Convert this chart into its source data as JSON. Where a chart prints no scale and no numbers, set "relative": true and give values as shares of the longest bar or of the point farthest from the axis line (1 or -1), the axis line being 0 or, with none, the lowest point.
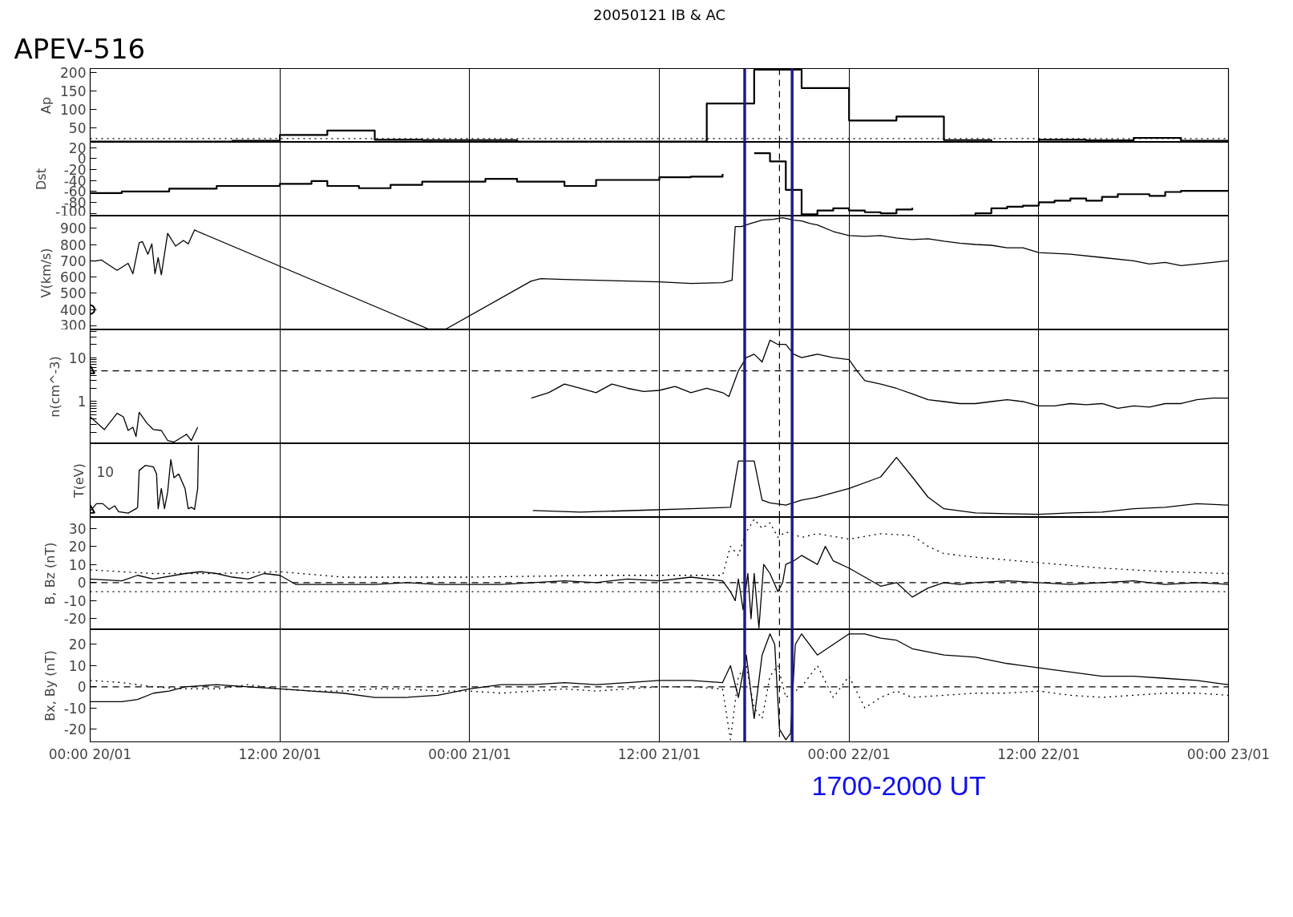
{
  "chart_data": [
    {
      "type": "step",
      "title": "APEV-516",
      "subtitle": "20050121 IB & AC",
      "ylabel": "Ap",
      "xlim": [
        "2005-01-20T00:00",
        "2005-01-23T00:00"
      ],
      "ylim": [
        10,
        210
      ],
      "yticks": [
        50,
        100,
        150,
        200
      ],
      "tick_labels": "y",
      "grid": "x",
      "series": [
        {
          "color": "#000000",
          "x": [
            "2005-01-20T00:00",
            "2005-01-20T03:00",
            "2005-01-20T06:00",
            "2005-01-20T09:00",
            "2005-01-20T12:00",
            "2005-01-20T15:00",
            "2005-01-20T18:00",
            "2005-01-20T21:00",
            "2005-01-21T00:00",
            "2005-01-21T03:00",
            "2005-01-21T06:00",
            "2005-01-21T09:00",
            "2005-01-21T12:00",
            "2005-01-21T15:00",
            "2005-01-21T18:00",
            "2005-01-21T21:00",
            "2005-01-22T00:00",
            "2005-01-22T03:00",
            "2005-01-22T06:00",
            "2005-01-22T09:00",
            "2005-01-22T12:00",
            "2005-01-22T15:00",
            "2005-01-22T18:00",
            "2005-01-22T21:00",
            "2005-01-23T00:00"
          ],
          "values": [
            12,
            12,
            12,
            14,
            30,
            42,
            17,
            16,
            16,
            12,
            12,
            12,
            12,
            115,
            207,
            157,
            69,
            80,
            16,
            11,
            17,
            15,
            22,
            14,
            14
          ]
        }
      ],
      "ref_lines": [
        {
          "axis": "y",
          "value": 20,
          "line_style": "dotted",
          "color": "#000000"
        },
        {
          "axis": "x",
          "value": "2005-01-21T19:36",
          "line_style": "dashed",
          "color": "#000000"
        },
        {
          "axis": "x",
          "value": "2005-01-21T17:24",
          "color": "#1c1c8c"
        },
        {
          "axis": "x",
          "value": "2005-01-21T20:24",
          "color": "#1c1c8c"
        }
      ]
    },
    {
      "type": "step",
      "ylabel": "Dst",
      "xlim": [
        "2005-01-20T00:00",
        "2005-01-23T00:00"
      ],
      "ylim": [
        -105,
        30
      ],
      "yticks": [
        20,
        0,
        -20,
        -40,
        -60,
        -80,
        -100
      ],
      "tick_labels": "y",
      "grid": "x",
      "series": [
        {
          "color": "#000000",
          "x": [
            "2005-01-20T00:00",
            "2005-01-20T02:00",
            "2005-01-20T05:00",
            "2005-01-20T08:00",
            "2005-01-20T12:00",
            "2005-01-20T14:00",
            "2005-01-20T15:00",
            "2005-01-20T17:00",
            "2005-01-20T19:00",
            "2005-01-20T21:00",
            "2005-01-21T01:00",
            "2005-01-21T03:00",
            "2005-01-21T06:00",
            "2005-01-21T08:00",
            "2005-01-21T12:00",
            "2005-01-21T14:00",
            "2005-01-21T16:00",
            "2005-01-21T17:00",
            "2005-01-21T18:00",
            "2005-01-21T19:00",
            "2005-01-21T20:00",
            "2005-01-21T21:00",
            "2005-01-21T22:00",
            "2005-01-21T23:00",
            "2005-01-22T00:00",
            "2005-01-22T01:00",
            "2005-01-22T02:00",
            "2005-01-22T03:00",
            "2005-01-22T04:00",
            "2005-01-22T05:00",
            "2005-01-22T07:00",
            "2005-01-22T08:00",
            "2005-01-22T09:00",
            "2005-01-22T10:00",
            "2005-01-22T11:00",
            "2005-01-22T12:00",
            "2005-01-22T13:00",
            "2005-01-22T14:00",
            "2005-01-22T15:00",
            "2005-01-22T16:00",
            "2005-01-22T17:00",
            "2005-01-22T19:00",
            "2005-01-22T20:00",
            "2005-01-22T21:00",
            "2005-01-23T00:00"
          ],
          "values": [
            -63,
            -60,
            -55,
            -50,
            -46,
            -41,
            -50,
            -54,
            -48,
            -42,
            -37,
            -42,
            -50,
            -39,
            -34,
            -33,
            -28,
            null,
            10,
            -5,
            -57,
            -102,
            -95,
            -91,
            -95,
            -98,
            -100,
            -93,
            -90,
            null,
            -104,
            -100,
            -91,
            -88,
            -86,
            -80,
            -77,
            -73,
            -77,
            -70,
            -65,
            -68,
            -61,
            -59,
            -59
          ]
        }
      ],
      "ref_lines": [
        {
          "axis": "x",
          "value": "2005-01-21T19:36",
          "line_style": "dashed",
          "color": "#000000"
        },
        {
          "axis": "x",
          "value": "2005-01-21T17:24",
          "color": "#1c1c8c"
        },
        {
          "axis": "x",
          "value": "2005-01-21T20:24",
          "color": "#1c1c8c"
        }
      ]
    },
    {
      "type": "line",
      "ylabel": "V(km/s)",
      "xlim": [
        "2005-01-20T00:00",
        "2005-01-23T00:00"
      ],
      "ylim": [
        275,
        975
      ],
      "yticks": [
        300,
        400,
        500,
        600,
        700,
        800,
        900
      ],
      "tick_labels": "y",
      "grid": "x",
      "series": [
        {
          "color": "#000000",
          "x": [
            "2005-01-20T00:00",
            "2005-01-20T00:18",
            "2005-01-20T00:42",
            "2005-01-20T01:42",
            "2005-01-20T02:24",
            "2005-01-20T02:42",
            "2005-01-20T03:06",
            "2005-01-20T03:18",
            "2005-01-20T03:39",
            "2005-01-20T03:54",
            "2005-01-20T04:06",
            "2005-01-20T04:18",
            "2005-01-20T04:30",
            "2005-01-20T04:54",
            "2005-01-20T05:24",
            "2005-01-20T05:54",
            "2005-01-20T06:12",
            "2005-01-20T06:36",
            "2005-01-20T06:48",
            "2005-01-20T21:24",
            "2005-01-20T22:30",
            "2005-01-21T03:54",
            "2005-01-21T04:30",
            "2005-01-21T06:00",
            "2005-01-21T08:00",
            "2005-01-21T10:00",
            "2005-01-21T12:00",
            "2005-01-21T14:00",
            "2005-01-21T16:00",
            "2005-01-21T16:36",
            "2005-01-21T16:48",
            "2005-01-21T17:12",
            "2005-01-21T17:48",
            "2005-01-21T18:30",
            "2005-01-21T19:12",
            "2005-01-21T19:48",
            "2005-01-21T20:30",
            "2005-01-21T21:00",
            "2005-01-21T21:30",
            "2005-01-21T22:00",
            "2005-01-21T23:00",
            "2005-01-22T00:00",
            "2005-01-22T01:00",
            "2005-01-22T02:00",
            "2005-01-22T03:00",
            "2005-01-22T04:00",
            "2005-01-22T05:00",
            "2005-01-22T06:00",
            "2005-01-22T07:00",
            "2005-01-22T08:00",
            "2005-01-22T09:00",
            "2005-01-22T10:00",
            "2005-01-22T11:00",
            "2005-01-22T12:00",
            "2005-01-22T14:00",
            "2005-01-22T16:00",
            "2005-01-22T18:00",
            "2005-01-22T19:00",
            "2005-01-22T20:00",
            "2005-01-22T21:00",
            "2005-01-22T22:00",
            "2005-01-22T23:00",
            "2005-01-23T00:00"
          ],
          "values": [
            700,
            698,
            705,
            641,
            684,
            620,
            811,
            818,
            740,
            804,
            620,
            719,
            613,
            868,
            790,
            825,
            804,
            889,
            880,
            280,
            280,
            575,
            590,
            585,
            580,
            575,
            570,
            560,
            565,
            580,
            910,
            910,
            930,
            950,
            955,
            965,
            950,
            945,
            930,
            920,
            880,
            855,
            850,
            855,
            840,
            830,
            835,
            820,
            808,
            800,
            795,
            780,
            780,
            750,
            740,
            720,
            700,
            680,
            690,
            670,
            680,
            690,
            700
          ]
        },
        {
          "type": "scatter",
          "marker": "circle",
          "color": "#000000",
          "x": [
            "2005-01-20T00:00"
          ],
          "values": [
            400
          ]
        }
      ],
      "ref_lines": [
        {
          "axis": "x",
          "value": "2005-01-21T19:36",
          "line_style": "dashed",
          "color": "#000000"
        },
        {
          "axis": "x",
          "value": "2005-01-21T17:24",
          "color": "#1c1c8c"
        },
        {
          "axis": "x",
          "value": "2005-01-21T20:24",
          "color": "#1c1c8c"
        }
      ]
    },
    {
      "type": "line",
      "ylabel": "n(cm^-3)",
      "log": "y",
      "xlim": [
        "2005-01-20T00:00",
        "2005-01-23T00:00"
      ],
      "ylim": [
        0.11,
        43
      ],
      "tick_labels": "y",
      "grid": "x",
      "yticks": [
        {
          "value": 0.2,
          "label": null
        },
        {
          "value": 0.3,
          "label": null
        },
        {
          "value": 0.4,
          "label": null
        },
        {
          "value": 0.5,
          "label": null
        },
        {
          "value": 0.6,
          "label": null
        },
        {
          "value": 0.7,
          "label": null
        },
        {
          "value": 0.8,
          "label": null
        },
        {
          "value": 0.9,
          "label": null
        },
        1,
        {
          "value": 2,
          "label": null
        },
        {
          "value": 3,
          "label": null
        },
        {
          "value": 4,
          "label": null
        },
        {
          "value": 5,
          "label": null
        },
        {
          "value": 6,
          "label": null
        },
        {
          "value": 7,
          "label": null
        },
        {
          "value": 8,
          "label": null
        },
        {
          "value": 9,
          "label": null
        },
        10,
        {
          "value": 20,
          "label": null
        },
        {
          "value": 30,
          "label": null
        },
        {
          "value": 40,
          "label": null
        }
      ],
      "series": [
        {
          "color": "#000000",
          "x": [
            "2005-01-20T00:00",
            "2005-01-20T00:54",
            "2005-01-20T01:42",
            "2005-01-20T02:06",
            "2005-01-20T02:24",
            "2005-01-20T02:42",
            "2005-01-20T02:54",
            "2005-01-20T03:06",
            "2005-01-20T03:36",
            "2005-01-20T04:00",
            "2005-01-20T04:30",
            "2005-01-20T04:54",
            "2005-01-20T05:18",
            "2005-01-20T06:06",
            "2005-01-20T06:24",
            "2005-01-20T06:48",
            "2005-01-20T17:00",
            "2005-01-21T03:54",
            "2005-01-21T05:00",
            "2005-01-21T06:00",
            "2005-01-21T07:00",
            "2005-01-21T08:00",
            "2005-01-21T09:00",
            "2005-01-21T10:00",
            "2005-01-21T11:00",
            "2005-01-21T12:00",
            "2005-01-21T13:00",
            "2005-01-21T14:00",
            "2005-01-21T15:00",
            "2005-01-21T16:00",
            "2005-01-21T16:24",
            "2005-01-21T17:00",
            "2005-01-21T17:30",
            "2005-01-21T18:00",
            "2005-01-21T18:30",
            "2005-01-21T19:00",
            "2005-01-21T19:30",
            "2005-01-21T20:00",
            "2005-01-21T20:30",
            "2005-01-21T21:00",
            "2005-01-21T22:00",
            "2005-01-21T23:00",
            "2005-01-22T00:00",
            "2005-01-22T00:30",
            "2005-01-22T01:00",
            "2005-01-22T02:00",
            "2005-01-22T03:00",
            "2005-01-22T04:00",
            "2005-01-22T05:00",
            "2005-01-22T06:00",
            "2005-01-22T07:00",
            "2005-01-22T08:00",
            "2005-01-22T09:00",
            "2005-01-22T10:00",
            "2005-01-22T11:00",
            "2005-01-22T12:00",
            "2005-01-22T13:00",
            "2005-01-22T14:00",
            "2005-01-22T15:00",
            "2005-01-22T16:00",
            "2005-01-22T17:00",
            "2005-01-22T18:00",
            "2005-01-22T19:00",
            "2005-01-22T20:00",
            "2005-01-22T21:00",
            "2005-01-22T22:00",
            "2005-01-22T23:00",
            "2005-01-23T00:00"
          ],
          "values": [
            0.45,
            0.23,
            0.54,
            0.45,
            0.22,
            0.26,
            0.16,
            0.57,
            0.32,
            0.23,
            0.22,
            0.13,
            0.12,
            0.18,
            0.13,
            0.26,
            null,
            1.2,
            1.6,
            2.5,
            2.0,
            1.6,
            2.5,
            2.0,
            1.7,
            1.8,
            2.2,
            1.6,
            2.0,
            1.6,
            1.3,
            5,
            10,
            12,
            8,
            25,
            20,
            20,
            12,
            10,
            12,
            10,
            9,
            5,
            3,
            2.5,
            2,
            1.5,
            1.1,
            1.0,
            0.9,
            0.9,
            1.0,
            1.1,
            1.0,
            0.8,
            0.8,
            0.9,
            0.85,
            0.9,
            0.7,
            0.8,
            0.75,
            0.9,
            0.9,
            1.1,
            1.2,
            1.2
          ]
        },
        {
          "type": "scatter",
          "marker": "triangle",
          "color": "#000000",
          "x": [
            "2005-01-20T00:00"
          ],
          "values": [
            5
          ]
        }
      ],
      "ref_lines": [
        {
          "axis": "y",
          "value": 5,
          "line_style": "dashed",
          "color": "#000000"
        },
        {
          "axis": "x",
          "value": "2005-01-21T19:36",
          "line_style": "dashed",
          "color": "#000000"
        },
        {
          "axis": "x",
          "value": "2005-01-21T17:24",
          "color": "#1c1c8c"
        },
        {
          "axis": "x",
          "value": "2005-01-21T20:24",
          "color": "#1c1c8c"
        }
      ]
    },
    {
      "type": "line",
      "ylabel": "T(eV)",
      "relative": true,
      "tick_labels": "y",
      "grid": "x",
      "xlim": [
        "2005-01-20T00:00",
        "2005-01-23T00:00"
      ],
      "annotations": [
        "10"
      ],
      "series": [
        {
          "color": "#000000",
          "x": [
            "2005-01-20T00:00",
            "2005-01-20T00:24",
            "2005-01-20T00:48",
            "2005-01-20T01:12",
            "2005-01-20T01:33",
            "2005-01-20T01:48",
            "2005-01-20T02:24",
            "2005-01-20T02:54",
            "2005-01-20T03:00",
            "2005-01-20T03:06",
            "2005-01-20T03:30",
            "2005-01-20T04:00",
            "2005-01-20T04:12",
            "2005-01-20T04:18",
            "2005-01-20T04:30",
            "2005-01-20T04:42",
            "2005-01-20T04:54",
            "2005-01-20T05:06",
            "2005-01-20T05:18",
            "2005-01-20T05:36",
            "2005-01-20T06:00",
            "2005-01-20T06:12",
            "2005-01-20T06:24",
            "2005-01-20T06:36",
            "2005-01-20T06:48",
            "2005-01-20T06:51",
            "2005-01-20T17:00",
            "2005-01-21T04:00",
            "2005-01-21T07:00",
            "2005-01-21T11:00",
            "2005-01-21T14:00",
            "2005-01-21T16:30",
            "2005-01-21T17:00",
            "2005-01-21T18:00",
            "2005-01-21T18:30",
            "2005-01-21T19:00",
            "2005-01-21T20:00",
            "2005-01-21T21:00",
            "2005-01-21T22:00",
            "2005-01-22T00:00",
            "2005-01-22T02:00",
            "2005-01-22T03:00",
            "2005-01-22T04:00",
            "2005-01-22T05:00",
            "2005-01-22T06:00",
            "2005-01-22T08:00",
            "2005-01-22T10:00",
            "2005-01-22T12:00",
            "2005-01-22T14:00",
            "2005-01-22T16:00",
            "2005-01-22T18:00",
            "2005-01-22T20:00",
            "2005-01-22T22:00",
            "2005-01-23T00:00"
          ],
          "values": [
            0.09,
            0.19,
            0.19,
            0.11,
            0.16,
            0.08,
            0.06,
            0.12,
            0.14,
            0.65,
            0.72,
            0.7,
            0.6,
            0.12,
            0.4,
            0.12,
            0.35,
            0.8,
            0.55,
            0.6,
            0.4,
            0.12,
            0.14,
            0.11,
            0.4,
            1.0,
            null,
            0.096,
            0.073,
            0.1,
            0.12,
            0.14,
            0.78,
            0.78,
            0.24,
            0.2,
            0.17,
            0.24,
            0.28,
            0.4,
            0.56,
            0.83,
            0.56,
            0.28,
            0.12,
            0.062,
            0.052,
            0.044,
            0.062,
            0.073,
            0.12,
            0.14,
            0.19,
            0.17
          ]
        },
        {
          "type": "scatter",
          "marker": "triangle",
          "color": "#000000",
          "x": [
            "2005-01-20T00:00"
          ],
          "values": [
            0.1
          ]
        }
      ],
      "ref_lines": [
        {
          "axis": "x",
          "value": "2005-01-21T19:36",
          "line_style": "dashed",
          "color": "#000000"
        },
        {
          "axis": "x",
          "value": "2005-01-21T17:24",
          "color": "#1c1c8c"
        },
        {
          "axis": "x",
          "value": "2005-01-21T20:24",
          "color": "#1c1c8c"
        }
      ]
    },
    {
      "type": "line",
      "ylabel": "B, Bz (nT)",
      "xlim": [
        "2005-01-20T00:00",
        "2005-01-23T00:00"
      ],
      "ylim": [
        -26,
        36
      ],
      "yticks": [
        -20,
        -10,
        0,
        10,
        20,
        30
      ],
      "tick_labels": "y",
      "grid": "x",
      "series": [
        {
          "color": "#000000",
          "x": [
            "2005-01-20T00:00",
            "2005-01-20T02:00",
            "2005-01-20T03:00",
            "2005-01-20T04:00",
            "2005-01-20T06:00",
            "2005-01-20T07:00",
            "2005-01-20T08:00",
            "2005-01-20T09:00",
            "2005-01-20T10:00",
            "2005-01-20T11:00",
            "2005-01-20T12:00",
            "2005-01-20T13:00",
            "2005-01-20T15:00",
            "2005-01-20T18:00",
            "2005-01-20T20:00",
            "2005-01-20T22:00",
            "2005-01-21T00:00",
            "2005-01-21T02:00",
            "2005-01-21T04:00",
            "2005-01-21T06:00",
            "2005-01-21T08:00",
            "2005-01-21T10:00",
            "2005-01-21T12:00",
            "2005-01-21T14:00",
            "2005-01-21T16:00",
            "2005-01-21T16:30",
            "2005-01-21T16:48",
            "2005-01-21T17:00",
            "2005-01-21T17:18",
            "2005-01-21T17:36",
            "2005-01-21T17:48",
            "2005-01-21T18:00",
            "2005-01-21T18:18",
            "2005-01-21T18:36",
            "2005-01-21T19:00",
            "2005-01-21T19:30",
            "2005-01-21T19:48",
            "2005-01-21T20:00",
            "2005-01-21T20:30",
            "2005-01-21T21:00",
            "2005-01-21T22:00",
            "2005-01-21T22:30",
            "2005-01-21T23:00",
            "2005-01-22T00:00",
            "2005-01-22T01:00",
            "2005-01-22T02:00",
            "2005-01-22T03:00",
            "2005-01-22T04:00",
            "2005-01-22T05:00",
            "2005-01-22T06:00",
            "2005-01-22T07:00",
            "2005-01-22T08:00",
            "2005-01-22T10:00",
            "2005-01-22T12:00",
            "2005-01-22T14:00",
            "2005-01-22T16:00",
            "2005-01-22T18:00",
            "2005-01-22T20:00",
            "2005-01-22T22:00",
            "2005-01-23T00:00"
          ],
          "values": [
            2,
            1,
            4,
            2,
            5,
            6,
            5,
            3,
            2,
            5,
            4,
            -1,
            -1,
            -1,
            0,
            -1,
            -1,
            -1,
            0,
            1,
            0,
            2,
            1,
            3,
            1,
            -5,
            -10,
            2,
            -15,
            5,
            -20,
            5,
            -25,
            10,
            5,
            -5,
            0,
            10,
            12,
            15,
            10,
            20,
            12,
            8,
            3,
            -2,
            0,
            -8,
            -3,
            0,
            -1,
            0,
            1,
            0,
            -1,
            0,
            1,
            -1,
            0,
            -1
          ]
        },
        {
          "color": "#000000",
          "line_style": "dotted",
          "x": [
            "2005-01-20T00:00",
            "2005-01-20T02:00",
            "2005-01-20T04:00",
            "2005-01-20T08:00",
            "2005-01-20T12:00",
            "2005-01-20T16:00",
            "2005-01-21T00:00",
            "2005-01-21T08:00",
            "2005-01-21T16:00",
            "2005-01-21T16:30",
            "2005-01-21T17:00",
            "2005-01-21T17:30",
            "2005-01-21T18:00",
            "2005-01-21T18:30",
            "2005-01-21T19:00",
            "2005-01-21T19:30",
            "2005-01-21T20:00",
            "2005-01-21T21:00",
            "2005-01-21T22:00",
            "2005-01-22T00:00",
            "2005-01-22T02:00",
            "2005-01-22T04:00",
            "2005-01-22T05:00",
            "2005-01-22T06:00",
            "2005-01-22T08:00",
            "2005-01-22T12:00",
            "2005-01-22T16:00",
            "2005-01-22T20:00",
            "2005-01-23T00:00"
          ],
          "values": [
            7,
            6,
            5,
            5,
            6,
            3,
            3,
            4,
            4,
            20,
            15,
            28,
            35,
            30,
            33,
            25,
            28,
            25,
            27,
            24,
            27,
            26,
            20,
            16,
            14,
            11,
            8,
            6,
            5
          ]
        }
      ],
      "ref_lines": [
        {
          "axis": "y",
          "value": 0,
          "line_style": "dashed",
          "color": "#000000"
        },
        {
          "axis": "y",
          "value": -5,
          "line_style": "dotted",
          "color": "#000000"
        },
        {
          "axis": "x",
          "value": "2005-01-21T19:36",
          "line_style": "dashed",
          "color": "#000000"
        },
        {
          "axis": "x",
          "value": "2005-01-21T17:24",
          "color": "#1c1c8c"
        },
        {
          "axis": "x",
          "value": "2005-01-21T20:24",
          "color": "#1c1c8c"
        }
      ]
    },
    {
      "type": "line",
      "ylabel": "Bx, By (nT)",
      "xlim": [
        "2005-01-20T00:00",
        "2005-01-23T00:00"
      ],
      "ylim": [
        -26,
        27
      ],
      "yticks": [
        -20,
        -10,
        0,
        10,
        20
      ],
      "grid": "x",
      "annotations": [
        "1700-2000 UT"
      ],
      "xticks": [
        {
          "value": "2005-01-20T00:00",
          "label": "00:00 20/01"
        },
        {
          "value": "2005-01-20T12:00",
          "label": "12:00 20/01"
        },
        {
          "value": "2005-01-21T00:00",
          "label": "00:00 21/01"
        },
        {
          "value": "2005-01-21T12:00",
          "label": "12:00 21/01"
        },
        {
          "value": "2005-01-22T00:00",
          "label": "00:00 22/01"
        },
        {
          "value": "2005-01-22T12:00",
          "label": "12:00 22/01"
        },
        {
          "value": "2005-01-23T00:00",
          "label": "00:00 23/01"
        }
      ],
      "series": [
        {
          "color": "#000000",
          "x": [
            "2005-01-20T00:00",
            "2005-01-20T02:00",
            "2005-01-20T03:00",
            "2005-01-20T04:00",
            "2005-01-20T05:00",
            "2005-01-20T06:00",
            "2005-01-20T08:00",
            "2005-01-20T10:00",
            "2005-01-20T12:00",
            "2005-01-20T14:00",
            "2005-01-20T16:00",
            "2005-01-20T18:00",
            "2005-01-20T20:00",
            "2005-01-20T22:00",
            "2005-01-21T00:00",
            "2005-01-21T02:00",
            "2005-01-21T04:00",
            "2005-01-21T06:00",
            "2005-01-21T08:00",
            "2005-01-21T10:00",
            "2005-01-21T12:00",
            "2005-01-21T14:00",
            "2005-01-21T16:00",
            "2005-01-21T16:30",
            "2005-01-21T17:00",
            "2005-01-21T17:30",
            "2005-01-21T18:00",
            "2005-01-21T18:30",
            "2005-01-21T19:00",
            "2005-01-21T19:18",
            "2005-01-21T19:36",
            "2005-01-21T20:00",
            "2005-01-21T20:18",
            "2005-01-21T20:36",
            "2005-01-21T21:00",
            "2005-01-21T22:00",
            "2005-01-21T23:00",
            "2005-01-22T00:00",
            "2005-01-22T01:00",
            "2005-01-22T02:00",
            "2005-01-22T03:00",
            "2005-01-22T04:00",
            "2005-01-22T06:00",
            "2005-01-22T08:00",
            "2005-01-22T10:00",
            "2005-01-22T12:00",
            "2005-01-22T14:00",
            "2005-01-22T16:00",
            "2005-01-22T18:00",
            "2005-01-22T20:00",
            "2005-01-22T22:00",
            "2005-01-23T00:00"
          ],
          "values": [
            -7,
            -7,
            -6,
            -3,
            -2,
            0,
            1,
            0,
            -1,
            -2,
            -3,
            -5,
            -5,
            -4,
            -1,
            1,
            1,
            2,
            1,
            2,
            3,
            3,
            2,
            10,
            -5,
            15,
            -15,
            15,
            25,
            20,
            -20,
            -25,
            -22,
            20,
            25,
            15,
            20,
            25,
            25,
            23,
            22,
            18,
            15,
            14,
            11,
            9,
            7,
            5,
            5,
            4,
            3,
            1
          ]
        },
        {
          "color": "#000000",
          "line_style": "dotted",
          "x": [
            "2005-01-20T00:00",
            "2005-01-20T02:00",
            "2005-01-20T04:00",
            "2005-01-20T06:00",
            "2005-01-20T08:00",
            "2005-01-20T10:00",
            "2005-01-20T12:00",
            "2005-01-20T14:00",
            "2005-01-20T16:00",
            "2005-01-20T18:00",
            "2005-01-20T20:00",
            "2005-01-20T22:00",
            "2005-01-21T00:00",
            "2005-01-21T02:00",
            "2005-01-21T04:00",
            "2005-01-21T06:00",
            "2005-01-21T08:00",
            "2005-01-21T10:00",
            "2005-01-21T12:00",
            "2005-01-21T14:00",
            "2005-01-21T16:00",
            "2005-01-21T16:30",
            "2005-01-21T17:00",
            "2005-01-21T17:30",
            "2005-01-21T18:00",
            "2005-01-21T18:30",
            "2005-01-21T19:00",
            "2005-01-21T19:30",
            "2005-01-21T20:00",
            "2005-01-21T21:00",
            "2005-01-21T22:00",
            "2005-01-21T23:00",
            "2005-01-22T00:00",
            "2005-01-22T01:00",
            "2005-01-22T02:00",
            "2005-01-22T03:00",
            "2005-01-22T04:00",
            "2005-01-22T06:00",
            "2005-01-22T08:00",
            "2005-01-22T10:00",
            "2005-01-22T12:00",
            "2005-01-22T14:00",
            "2005-01-22T16:00",
            "2005-01-22T18:00",
            "2005-01-22T20:00",
            "2005-01-22T22:00",
            "2005-01-23T00:00"
          ],
          "values": [
            3,
            2,
            0,
            -1,
            -1,
            1,
            -1,
            -2,
            -2,
            -1,
            -1,
            -2,
            -2,
            -3,
            -2,
            -1,
            -2,
            -1,
            0,
            0,
            -1,
            -25,
            5,
            10,
            -10,
            -15,
            5,
            10,
            -5,
            0,
            10,
            -5,
            5,
            -10,
            -5,
            -2,
            -5,
            -4,
            -3,
            -3,
            -2,
            -4,
            -5,
            -4,
            -3,
            -3,
            -4
          ]
        }
      ],
      "ref_lines": [
        {
          "axis": "y",
          "value": 0,
          "line_style": "dashed",
          "color": "#000000"
        },
        {
          "axis": "x",
          "value": "2005-01-21T19:36",
          "line_style": "dashed",
          "color": "#000000"
        },
        {
          "axis": "x",
          "value": "2005-01-21T17:24",
          "color": "#1c1c8c"
        },
        {
          "axis": "x",
          "value": "2005-01-21T20:24",
          "color": "#1c1c8c"
        }
      ]
    }
  ]
}
